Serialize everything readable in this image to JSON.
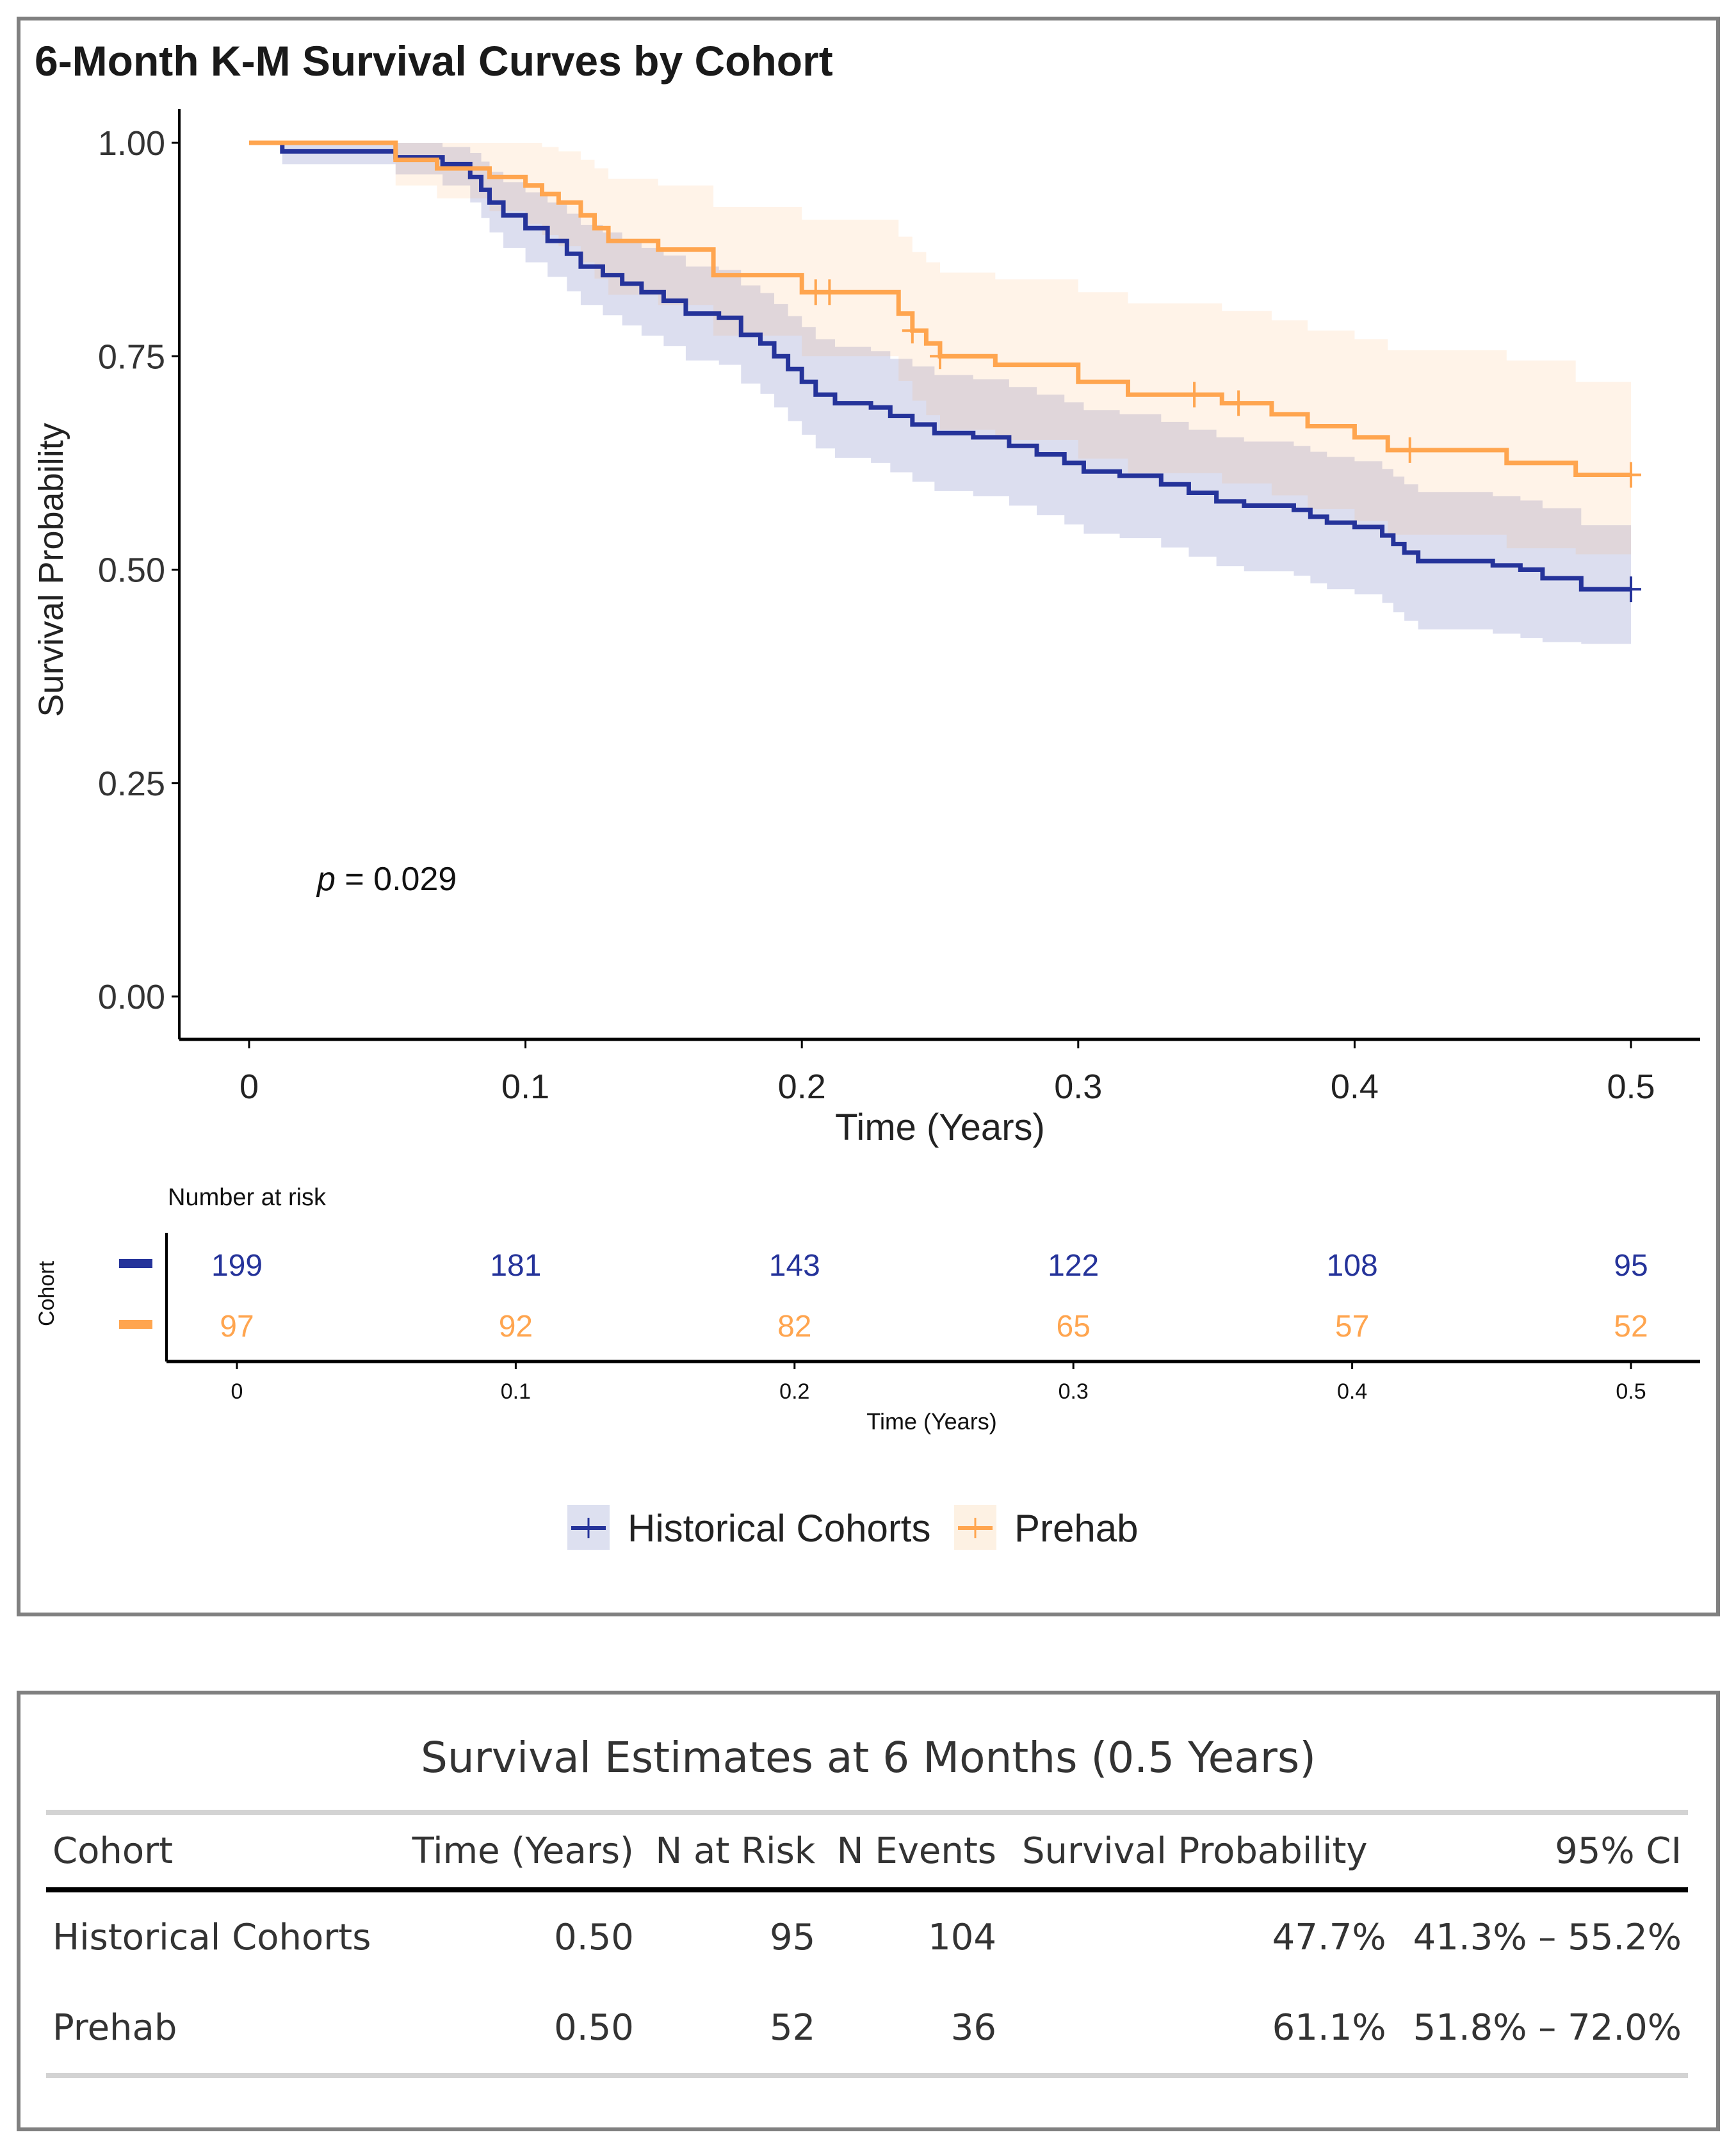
{
  "chart_data": {
    "type": "line",
    "subtype": "kaplan-meier-step",
    "title": "6-Month K-M Survival Curves by Cohort",
    "xlabel": "Time (Years)",
    "ylabel": "Survival Probability",
    "xlim": [
      0,
      0.5
    ],
    "ylim": [
      0,
      1
    ],
    "x_ticks": [
      "0",
      "0.1",
      "0.2",
      "0.3",
      "0.4",
      "0.5"
    ],
    "x_tick_values": [
      0,
      0.1,
      0.2,
      0.3,
      0.4,
      0.5
    ],
    "y_ticks": [
      "0.00",
      "0.25",
      "0.50",
      "0.75",
      "1.00"
    ],
    "y_tick_values": [
      0,
      0.25,
      0.5,
      0.75,
      1.0
    ],
    "grid": false,
    "annotation": {
      "p_label": "p",
      "p_text": " = 0.029",
      "p_value": 0.029,
      "position": {
        "x": 0.025,
        "y": 0.135
      }
    },
    "legend_position": "bottom",
    "series": [
      {
        "name": "Historical Cohorts",
        "color": "#25339A",
        "ci_color": "#DDE0F0",
        "times": [
          0,
          0.012,
          0.053,
          0.07,
          0.08,
          0.084,
          0.087,
          0.092,
          0.1,
          0.108,
          0.115,
          0.12,
          0.128,
          0.135,
          0.142,
          0.15,
          0.158,
          0.17,
          0.178,
          0.185,
          0.19,
          0.195,
          0.2,
          0.205,
          0.212,
          0.225,
          0.232,
          0.24,
          0.248,
          0.262,
          0.275,
          0.285,
          0.295,
          0.302,
          0.315,
          0.33,
          0.34,
          0.35,
          0.36,
          0.378,
          0.384,
          0.39,
          0.4,
          0.41,
          0.414,
          0.418,
          0.423,
          0.45,
          0.46,
          0.468,
          0.482,
          0.5
        ],
        "survival": [
          1.0,
          0.99,
          0.983,
          0.975,
          0.96,
          0.945,
          0.93,
          0.915,
          0.9,
          0.885,
          0.87,
          0.855,
          0.845,
          0.835,
          0.825,
          0.815,
          0.8,
          0.795,
          0.775,
          0.765,
          0.75,
          0.735,
          0.72,
          0.705,
          0.695,
          0.69,
          0.68,
          0.67,
          0.66,
          0.655,
          0.645,
          0.635,
          0.625,
          0.615,
          0.61,
          0.6,
          0.59,
          0.58,
          0.575,
          0.57,
          0.562,
          0.555,
          0.55,
          0.54,
          0.53,
          0.52,
          0.51,
          0.505,
          0.5,
          0.49,
          0.477,
          0.477
        ],
        "ci_lower": [
          1.0,
          0.975,
          0.963,
          0.95,
          0.93,
          0.912,
          0.895,
          0.877,
          0.86,
          0.843,
          0.826,
          0.81,
          0.798,
          0.786,
          0.774,
          0.762,
          0.745,
          0.74,
          0.718,
          0.706,
          0.69,
          0.674,
          0.658,
          0.642,
          0.631,
          0.625,
          0.614,
          0.603,
          0.592,
          0.586,
          0.575,
          0.564,
          0.553,
          0.542,
          0.537,
          0.526,
          0.515,
          0.504,
          0.498,
          0.493,
          0.484,
          0.477,
          0.471,
          0.461,
          0.45,
          0.44,
          0.43,
          0.425,
          0.42,
          0.415,
          0.413,
          0.413
        ],
        "ci_upper": [
          1.0,
          1.0,
          1.0,
          0.995,
          0.988,
          0.978,
          0.966,
          0.954,
          0.942,
          0.93,
          0.917,
          0.904,
          0.895,
          0.886,
          0.877,
          0.868,
          0.855,
          0.851,
          0.833,
          0.824,
          0.811,
          0.797,
          0.784,
          0.77,
          0.761,
          0.756,
          0.747,
          0.738,
          0.728,
          0.723,
          0.714,
          0.705,
          0.696,
          0.687,
          0.682,
          0.673,
          0.664,
          0.655,
          0.65,
          0.645,
          0.638,
          0.632,
          0.627,
          0.618,
          0.609,
          0.6,
          0.591,
          0.586,
          0.581,
          0.572,
          0.552,
          0.552
        ],
        "censor_times": [
          0.5
        ],
        "at_risk": [
          199,
          181,
          143,
          122,
          108,
          95
        ],
        "at_risk_color": "#25339A"
      },
      {
        "name": "Prehab",
        "color": "#FFA54F",
        "ci_color": "#FDF1E3",
        "times": [
          0,
          0.053,
          0.068,
          0.087,
          0.1,
          0.106,
          0.112,
          0.12,
          0.125,
          0.13,
          0.148,
          0.168,
          0.2,
          0.235,
          0.24,
          0.245,
          0.25,
          0.27,
          0.3,
          0.318,
          0.352,
          0.37,
          0.383,
          0.4,
          0.412,
          0.455,
          0.48,
          0.5
        ],
        "survival": [
          1.0,
          0.98,
          0.97,
          0.96,
          0.95,
          0.94,
          0.93,
          0.915,
          0.9,
          0.885,
          0.875,
          0.845,
          0.825,
          0.8,
          0.78,
          0.765,
          0.75,
          0.74,
          0.72,
          0.705,
          0.695,
          0.682,
          0.668,
          0.655,
          0.64,
          0.625,
          0.611,
          0.611
        ],
        "ci_lower": [
          1.0,
          0.95,
          0.935,
          0.92,
          0.905,
          0.892,
          0.879,
          0.86,
          0.841,
          0.822,
          0.81,
          0.774,
          0.75,
          0.721,
          0.698,
          0.681,
          0.664,
          0.652,
          0.63,
          0.613,
          0.601,
          0.587,
          0.571,
          0.557,
          0.541,
          0.525,
          0.518,
          0.518
        ],
        "ci_upper": [
          1.0,
          1.0,
          1.0,
          1.0,
          1.0,
          0.995,
          0.99,
          0.98,
          0.97,
          0.958,
          0.95,
          0.925,
          0.91,
          0.89,
          0.872,
          0.86,
          0.848,
          0.84,
          0.825,
          0.812,
          0.803,
          0.792,
          0.78,
          0.77,
          0.757,
          0.745,
          0.72,
          0.72
        ],
        "censor_times": [
          0.205,
          0.21,
          0.24,
          0.25,
          0.342,
          0.358,
          0.42,
          0.5
        ],
        "at_risk": [
          97,
          92,
          82,
          65,
          57,
          52
        ],
        "at_risk_color": "#FFA54F"
      }
    ],
    "risk_table": {
      "title": "Number at risk",
      "y_label": "Cohort",
      "xlabel": "Time (Years)",
      "x_ticks": [
        "0",
        "0.1",
        "0.2",
        "0.3",
        "0.4",
        "0.5"
      ],
      "x_tick_values": [
        0,
        0.1,
        0.2,
        0.3,
        0.4,
        0.5
      ]
    },
    "legend": [
      {
        "label": "Historical Cohorts",
        "color": "#25339A",
        "bg": "#DDE0F0"
      },
      {
        "label": "Prehab",
        "color": "#FFA54F",
        "bg": "#FDF1E3"
      }
    ]
  },
  "estimates_table": {
    "title": "Survival Estimates at 6 Months (0.5 Years)",
    "columns": [
      "Cohort",
      "Time (Years)",
      "N at Risk",
      "N Events",
      "Survival Probability",
      "95% CI"
    ],
    "rows": [
      [
        "Historical Cohorts",
        "0.50",
        "95",
        "104",
        "47.7%",
        "41.3% – 55.2%"
      ],
      [
        "Prehab",
        "0.50",
        "52",
        "36",
        "61.1%",
        "51.8% – 72.0%"
      ]
    ]
  }
}
